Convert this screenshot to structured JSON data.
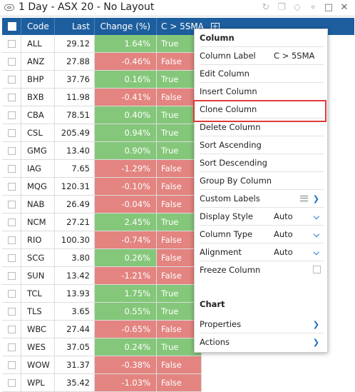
{
  "window": {
    "title": "1 Day - ASX 20 - No Layout"
  },
  "columns": {
    "code": "Code",
    "last": "Last",
    "change": "Change (%)",
    "sma": "C > 5SMA"
  },
  "rows": [
    {
      "code": "ALL",
      "last": "29.12",
      "change": "1.64%",
      "sma": "True"
    },
    {
      "code": "ANZ",
      "last": "27.88",
      "change": "-0.46%",
      "sma": "False"
    },
    {
      "code": "BHP",
      "last": "37.76",
      "change": "0.16%",
      "sma": "True"
    },
    {
      "code": "BXB",
      "last": "11.98",
      "change": "-0.41%",
      "sma": "False"
    },
    {
      "code": "CBA",
      "last": "78.51",
      "change": "0.40%",
      "sma": "True"
    },
    {
      "code": "CSL",
      "last": "205.49",
      "change": "0.94%",
      "sma": "True"
    },
    {
      "code": "GMG",
      "last": "13.40",
      "change": "0.90%",
      "sma": "True"
    },
    {
      "code": "IAG",
      "last": "7.65",
      "change": "-1.29%",
      "sma": "False"
    },
    {
      "code": "MQG",
      "last": "120.31",
      "change": "-0.10%",
      "sma": "False"
    },
    {
      "code": "NAB",
      "last": "26.49",
      "change": "-0.04%",
      "sma": "False"
    },
    {
      "code": "NCM",
      "last": "27.21",
      "change": "2.45%",
      "sma": "True"
    },
    {
      "code": "RIO",
      "last": "100.30",
      "change": "-0.74%",
      "sma": "False"
    },
    {
      "code": "SCG",
      "last": "3.80",
      "change": "0.26%",
      "sma": "False"
    },
    {
      "code": "SUN",
      "last": "13.42",
      "change": "-1.21%",
      "sma": "False"
    },
    {
      "code": "TCL",
      "last": "13.93",
      "change": "1.75%",
      "sma": "True"
    },
    {
      "code": "TLS",
      "last": "3.65",
      "change": "0.55%",
      "sma": "True"
    },
    {
      "code": "WBC",
      "last": "27.44",
      "change": "-0.65%",
      "sma": "False"
    },
    {
      "code": "WES",
      "last": "37.05",
      "change": "0.24%",
      "sma": "True"
    },
    {
      "code": "WOW",
      "last": "31.37",
      "change": "-0.38%",
      "sma": "False"
    },
    {
      "code": "WPL",
      "last": "35.42",
      "change": "-1.03%",
      "sma": "False"
    }
  ],
  "menu": {
    "column_header": "Column",
    "column_label": "Column Label",
    "column_label_value": "C > 5SMA",
    "edit_column": "Edit Column",
    "insert_column": "Insert Column",
    "clone_column": "Clone Column",
    "delete_column": "Delete Column",
    "sort_ascending": "Sort Ascending",
    "sort_descending": "Sort Descending",
    "group_by_column": "Group By Column",
    "custom_labels": "Custom Labels",
    "display_style": "Display Style",
    "display_style_value": "Auto",
    "column_type": "Column Type",
    "column_type_value": "Auto",
    "alignment": "Alignment",
    "alignment_value": "Auto",
    "freeze_column": "Freeze Column",
    "chart_header": "Chart",
    "properties": "Properties",
    "actions": "Actions"
  },
  "colors": {
    "header_bg": "#1d5e9e",
    "positive": "#84c77a",
    "negative": "#e38480",
    "accent": "#1d70c3",
    "highlight_border": "#e03a3a"
  }
}
